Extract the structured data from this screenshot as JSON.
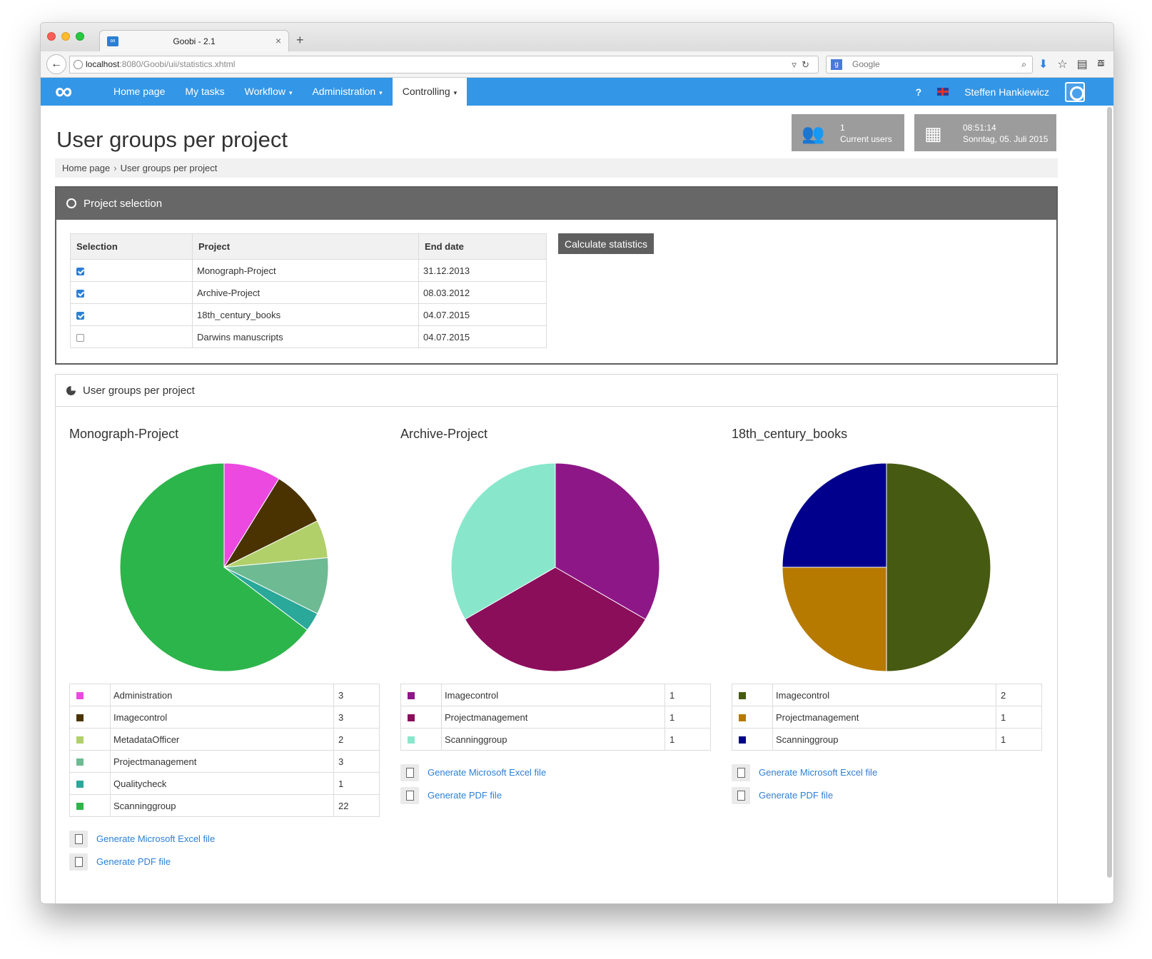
{
  "browser": {
    "tab_title": "Goobi - 2.1",
    "tab_close": "×",
    "new_tab": "+",
    "url_host": "localhost",
    "url_rest": ":8080/Goobi/uii/statistics.xhtml",
    "search_engine_label": "Google",
    "icons": [
      "back-arrow-icon",
      "globe-icon",
      "reload-icon",
      "search-icon",
      "download-icon",
      "star-icon",
      "reader-icon",
      "home-icon",
      "hamburger-menu-icon"
    ]
  },
  "nav": {
    "logo": "∞",
    "items": [
      {
        "label": "Home page",
        "caret": ""
      },
      {
        "label": "My tasks",
        "caret": ""
      },
      {
        "label": "Workflow",
        "caret": "▾"
      },
      {
        "label": "Administration",
        "caret": "▾"
      },
      {
        "label": "Controlling",
        "caret": "▾",
        "active": true
      }
    ],
    "help": "?",
    "user": "Steffen Hankiewicz"
  },
  "header": {
    "title": "User groups per project",
    "widgets": {
      "users_count": "1",
      "users_label": "Current users",
      "time": "08:51:14",
      "date": "Sonntag, 05. Juli 2015"
    }
  },
  "breadcrumb": {
    "home": "Home page",
    "separator": "›",
    "current": "User groups per project"
  },
  "project_selection": {
    "title": "Project selection",
    "columns": [
      "Selection",
      "Project",
      "End date"
    ],
    "rows": [
      {
        "checked": true,
        "project": "Monograph-Project",
        "end_date": "31.12.2013"
      },
      {
        "checked": true,
        "project": "Archive-Project",
        "end_date": "08.03.2012"
      },
      {
        "checked": true,
        "project": "18th_century_books",
        "end_date": "04.07.2015"
      },
      {
        "checked": false,
        "project": "Darwins manuscripts",
        "end_date": "04.07.2015"
      }
    ],
    "button_label": "Calculate statistics"
  },
  "statistics": {
    "title": "User groups per project",
    "excel_label": "Generate Microsoft Excel file",
    "pdf_label": "Generate PDF file"
  },
  "chart_data": [
    {
      "type": "pie",
      "title": "Monograph-Project",
      "categories": [
        "Administration",
        "Imagecontrol",
        "MetadataOfficer",
        "Projectmanagement",
        "Qualitycheck",
        "Scanninggroup"
      ],
      "values": [
        3,
        3,
        2,
        3,
        1,
        22
      ],
      "colors": [
        "#ec49e0",
        "#4a3300",
        "#b1d06a",
        "#6dba93",
        "#2aa89a",
        "#2cb54a"
      ]
    },
    {
      "type": "pie",
      "title": "Archive-Project",
      "categories": [
        "Imagecontrol",
        "Projectmanagement",
        "Scanninggroup"
      ],
      "values": [
        1,
        1,
        1
      ],
      "colors": [
        "#8e1787",
        "#8b0e5b",
        "#88e7cb"
      ]
    },
    {
      "type": "pie",
      "title": "18th_century_books",
      "categories": [
        "Imagecontrol",
        "Projectmanagement",
        "Scanninggroup"
      ],
      "values": [
        2,
        1,
        1
      ],
      "colors": [
        "#465a12",
        "#b77a00",
        "#00008c"
      ]
    }
  ]
}
